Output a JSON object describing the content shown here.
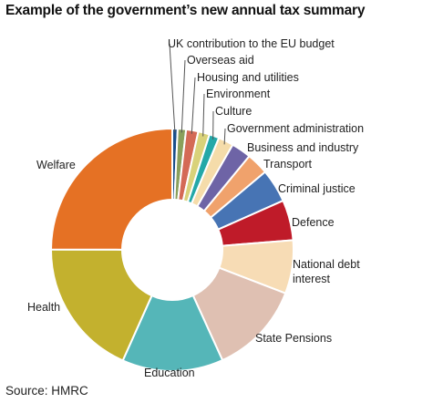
{
  "chart_data": {
    "type": "pie",
    "variant": "donut",
    "title": "Example of the government’s new annual tax summary",
    "source": "Source: HMRC",
    "legend": "none",
    "slices": [
      {
        "label": "UK contribution to the EU budget",
        "value": 0.7,
        "color": "#1b4f8a"
      },
      {
        "label": "Overseas aid",
        "value": 1.1,
        "color": "#8aa05c"
      },
      {
        "label": "Housing and utilities",
        "value": 1.6,
        "color": "#d46a56"
      },
      {
        "label": "Environment",
        "value": 1.5,
        "color": "#d9d27a"
      },
      {
        "label": "Culture",
        "value": 1.3,
        "color": "#24a8a8"
      },
      {
        "label": "Government administration",
        "value": 2.0,
        "color": "#f5dcaa"
      },
      {
        "label": "Business and industry",
        "value": 2.6,
        "color": "#6e64a6"
      },
      {
        "label": "Transport",
        "value": 2.9,
        "color": "#f0a26c"
      },
      {
        "label": "Criminal justice",
        "value": 4.4,
        "color": "#4774b4"
      },
      {
        "label": "Defence",
        "value": 5.3,
        "color": "#bf1b29"
      },
      {
        "label": "National debt interest",
        "value": 7.0,
        "color": "#f7dcb5"
      },
      {
        "label": "State Pensions",
        "value": 12.2,
        "color": "#dfc0b2"
      },
      {
        "label": "Education",
        "value": 13.3,
        "color": "#55b6b8"
      },
      {
        "label": "Health",
        "value": 18.1,
        "color": "#c3b12e"
      },
      {
        "label": "Welfare",
        "value": 24.6,
        "color": "#e57124"
      }
    ]
  }
}
